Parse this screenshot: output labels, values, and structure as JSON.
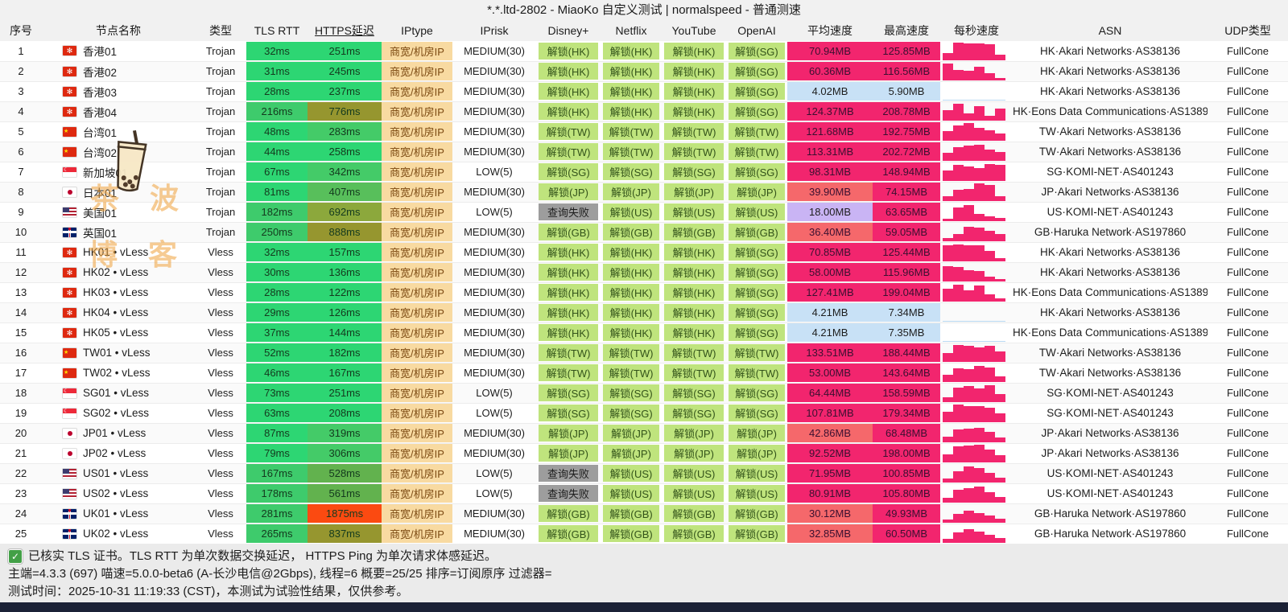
{
  "title": "*.*.ltd-2802 - MiaoKo 自定义测试 | normalspeed - 普通测速",
  "columns": [
    "序号",
    "节点名称",
    "类型",
    "TLS RTT",
    "HTTPS延迟",
    "IPtype",
    "IPrisk",
    "Disney+",
    "Netflix",
    "YouTube",
    "OpenAI",
    "平均速度",
    "最高速度",
    "每秒速度",
    "ASN",
    "UDP类型"
  ],
  "rows": [
    {
      "no": "1",
      "flag": "hk",
      "name": "香港01",
      "type": "Trojan",
      "tls": "32ms",
      "https": "251ms",
      "iptype": "商宽/机房IP",
      "iprisk": "MEDIUM(30)",
      "disney": "解锁(HK)",
      "netflix": "解锁(HK)",
      "youtube": "解锁(HK)",
      "openai": "解锁(SG)",
      "avg": "70.94MB",
      "max": "125.85MB",
      "spark": [
        38,
        95,
        90,
        92,
        88,
        30
      ],
      "spark_color": "pink",
      "asn": "HK·Akari Networks·AS38136",
      "udp": "FullCone"
    },
    {
      "no": "2",
      "flag": "hk",
      "name": "香港02",
      "type": "Trojan",
      "tls": "31ms",
      "https": "245ms",
      "iptype": "商宽/机房IP",
      "iprisk": "MEDIUM(30)",
      "disney": "解锁(HK)",
      "netflix": "解锁(HK)",
      "youtube": "解锁(HK)",
      "openai": "解锁(SG)",
      "avg": "60.36MB",
      "max": "116.56MB",
      "spark": [
        90,
        55,
        50,
        72,
        40,
        12
      ],
      "spark_color": "pink",
      "asn": "HK·Akari Networks·AS38136",
      "udp": "FullCone"
    },
    {
      "no": "3",
      "flag": "hk",
      "name": "香港03",
      "type": "Trojan",
      "tls": "28ms",
      "https": "237ms",
      "iptype": "商宽/机房IP",
      "iprisk": "MEDIUM(30)",
      "disney": "解锁(HK)",
      "netflix": "解锁(HK)",
      "youtube": "解锁(HK)",
      "openai": "解锁(SG)",
      "avg": "4.02MB",
      "max": "5.90MB",
      "spark": [
        4,
        3,
        3,
        3,
        3,
        3
      ],
      "spark_color": "blue",
      "asn": "HK·Akari Networks·AS38136",
      "udp": "FullCone"
    },
    {
      "no": "4",
      "flag": "hk",
      "name": "香港04",
      "type": "Trojan",
      "tls": "216ms",
      "https": "776ms",
      "iptype": "商宽/机房IP",
      "iprisk": "MEDIUM(30)",
      "disney": "解锁(HK)",
      "netflix": "解锁(HK)",
      "youtube": "解锁(HK)",
      "openai": "解锁(SG)",
      "avg": "124.37MB",
      "max": "208.78MB",
      "spark": [
        55,
        90,
        40,
        78,
        28,
        65
      ],
      "spark_color": "pink",
      "asn": "HK·Eons Data Communications·AS138997",
      "udp": "FullCone"
    },
    {
      "no": "5",
      "flag": "cn",
      "name": "台湾01",
      "type": "Trojan",
      "tls": "48ms",
      "https": "283ms",
      "iptype": "商宽/机房IP",
      "iprisk": "MEDIUM(30)",
      "disney": "解锁(TW)",
      "netflix": "解锁(TW)",
      "youtube": "解锁(TW)",
      "openai": "解锁(TW)",
      "avg": "121.68MB",
      "max": "192.75MB",
      "spark": [
        50,
        82,
        95,
        70,
        58,
        38
      ],
      "spark_color": "pink",
      "asn": "TW·Akari Networks·AS38136",
      "udp": "FullCone"
    },
    {
      "no": "6",
      "flag": "cn",
      "name": "台湾02",
      "type": "Trojan",
      "tls": "44ms",
      "https": "258ms",
      "iptype": "商宽/机房IP",
      "iprisk": "MEDIUM(30)",
      "disney": "解锁(TW)",
      "netflix": "解锁(TW)",
      "youtube": "解锁(TW)",
      "openai": "解锁(TW)",
      "avg": "113.31MB",
      "max": "202.72MB",
      "spark": [
        45,
        75,
        82,
        85,
        60,
        48
      ],
      "spark_color": "pink",
      "asn": "TW·Akari Networks·AS38136",
      "udp": "FullCone"
    },
    {
      "no": "7",
      "flag": "sg",
      "name": "新加坡01",
      "type": "Trojan",
      "tls": "67ms",
      "https": "342ms",
      "iptype": "商宽/机房IP",
      "iprisk": "LOW(5)",
      "disney": "解锁(SG)",
      "netflix": "解锁(SG)",
      "youtube": "解锁(SG)",
      "openai": "解锁(SG)",
      "avg": "98.31MB",
      "max": "148.94MB",
      "spark": [
        55,
        85,
        78,
        70,
        92,
        85
      ],
      "spark_color": "pink",
      "asn": "SG·KOMI-NET·AS401243",
      "udp": "FullCone"
    },
    {
      "no": "8",
      "flag": "jp",
      "name": "日本01",
      "type": "Trojan",
      "tls": "81ms",
      "https": "407ms",
      "iptype": "商宽/机房IP",
      "iprisk": "MEDIUM(30)",
      "disney": "解锁(JP)",
      "netflix": "解锁(JP)",
      "youtube": "解锁(JP)",
      "openai": "解锁(JP)",
      "avg": "39.90MB",
      "max": "74.15MB",
      "spark": [
        25,
        60,
        65,
        95,
        88,
        28
      ],
      "spark_color": "pink",
      "asn": "JP·Akari Networks·AS38136",
      "udp": "FullCone"
    },
    {
      "no": "9",
      "flag": "us",
      "name": "美国01",
      "type": "Trojan",
      "tls": "182ms",
      "https": "692ms",
      "iptype": "商宽/机房IP",
      "iprisk": "LOW(5)",
      "disney": "查询失败",
      "netflix": "解锁(US)",
      "youtube": "解锁(US)",
      "openai": "解锁(US)",
      "avg": "18.00MB",
      "max": "63.65MB",
      "spark": [
        15,
        72,
        88,
        40,
        28,
        18
      ],
      "spark_color": "pink",
      "asn": "US·KOMI-NET·AS401243",
      "udp": "FullCone"
    },
    {
      "no": "10",
      "flag": "gb",
      "name": "英国01",
      "type": "Trojan",
      "tls": "250ms",
      "https": "888ms",
      "iptype": "商宽/机房IP",
      "iprisk": "MEDIUM(30)",
      "disney": "解锁(GB)",
      "netflix": "解锁(GB)",
      "youtube": "解锁(GB)",
      "openai": "解锁(GB)",
      "avg": "36.40MB",
      "max": "59.05MB",
      "spark": [
        18,
        38,
        80,
        75,
        55,
        40
      ],
      "spark_color": "pink",
      "asn": "GB·Haruka Network·AS197860",
      "udp": "FullCone"
    },
    {
      "no": "11",
      "flag": "hk",
      "name": "HK01 • vLess",
      "type": "Vless",
      "tls": "32ms",
      "https": "157ms",
      "iptype": "商宽/机房IP",
      "iprisk": "MEDIUM(30)",
      "disney": "解锁(HK)",
      "netflix": "解锁(HK)",
      "youtube": "解锁(HK)",
      "openai": "解锁(SG)",
      "avg": "70.85MB",
      "max": "125.44MB",
      "spark": [
        85,
        92,
        88,
        85,
        58,
        18
      ],
      "spark_color": "pink",
      "asn": "HK·Akari Networks·AS38136",
      "udp": "FullCone"
    },
    {
      "no": "12",
      "flag": "hk",
      "name": "HK02 • vLess",
      "type": "Vless",
      "tls": "30ms",
      "https": "136ms",
      "iptype": "商宽/机房IP",
      "iprisk": "MEDIUM(30)",
      "disney": "解锁(HK)",
      "netflix": "解锁(HK)",
      "youtube": "解锁(HK)",
      "openai": "解锁(SG)",
      "avg": "58.00MB",
      "max": "115.96MB",
      "spark": [
        82,
        80,
        62,
        55,
        28,
        12
      ],
      "spark_color": "pink",
      "asn": "HK·Akari Networks·AS38136",
      "udp": "FullCone"
    },
    {
      "no": "13",
      "flag": "hk",
      "name": "HK03 • vLess",
      "type": "Vless",
      "tls": "28ms",
      "https": "122ms",
      "iptype": "商宽/机房IP",
      "iprisk": "MEDIUM(30)",
      "disney": "解锁(HK)",
      "netflix": "解锁(HK)",
      "youtube": "解锁(HK)",
      "openai": "解锁(SG)",
      "avg": "127.41MB",
      "max": "199.04MB",
      "spark": [
        70,
        92,
        62,
        85,
        38,
        18
      ],
      "spark_color": "pink",
      "asn": "HK·Eons Data Communications·AS138997",
      "udp": "FullCone"
    },
    {
      "no": "14",
      "flag": "hk",
      "name": "HK04 • vLess",
      "type": "Vless",
      "tls": "29ms",
      "https": "126ms",
      "iptype": "商宽/机房IP",
      "iprisk": "MEDIUM(30)",
      "disney": "解锁(HK)",
      "netflix": "解锁(HK)",
      "youtube": "解锁(HK)",
      "openai": "解锁(SG)",
      "avg": "4.21MB",
      "max": "7.34MB",
      "spark": [
        4,
        3,
        3,
        3,
        3,
        3
      ],
      "spark_color": "blue",
      "asn": "HK·Akari Networks·AS38136",
      "udp": "FullCone"
    },
    {
      "no": "15",
      "flag": "hk",
      "name": "HK05 • vLess",
      "type": "Vless",
      "tls": "37ms",
      "https": "144ms",
      "iptype": "商宽/机房IP",
      "iprisk": "MEDIUM(30)",
      "disney": "解锁(HK)",
      "netflix": "解锁(HK)",
      "youtube": "解锁(HK)",
      "openai": "解锁(SG)",
      "avg": "4.21MB",
      "max": "7.35MB",
      "spark": [
        4,
        3,
        3,
        3,
        3,
        3
      ],
      "spark_color": "blue",
      "asn": "HK·Eons Data Communications·AS138997",
      "udp": "FullCone"
    },
    {
      "no": "16",
      "flag": "cn",
      "name": "TW01 • vLess",
      "type": "Vless",
      "tls": "52ms",
      "https": "182ms",
      "iptype": "商宽/机房IP",
      "iprisk": "MEDIUM(30)",
      "disney": "解锁(TW)",
      "netflix": "解锁(TW)",
      "youtube": "解锁(TW)",
      "openai": "解锁(TW)",
      "avg": "133.51MB",
      "max": "188.44MB",
      "spark": [
        48,
        90,
        85,
        78,
        88,
        58
      ],
      "spark_color": "pink",
      "asn": "TW·Akari Networks·AS38136",
      "udp": "FullCone"
    },
    {
      "no": "17",
      "flag": "cn",
      "name": "TW02 • vLess",
      "type": "Vless",
      "tls": "46ms",
      "https": "167ms",
      "iptype": "商宽/机房IP",
      "iprisk": "MEDIUM(30)",
      "disney": "解锁(TW)",
      "netflix": "解锁(TW)",
      "youtube": "解锁(TW)",
      "openai": "解锁(TW)",
      "avg": "53.00MB",
      "max": "143.64MB",
      "spark": [
        38,
        75,
        70,
        85,
        78,
        32
      ],
      "spark_color": "pink",
      "asn": "TW·Akari Networks·AS38136",
      "udp": "FullCone"
    },
    {
      "no": "18",
      "flag": "sg",
      "name": "SG01 • vLess",
      "type": "Vless",
      "tls": "73ms",
      "https": "251ms",
      "iptype": "商宽/机房IP",
      "iprisk": "LOW(5)",
      "disney": "解锁(SG)",
      "netflix": "解锁(SG)",
      "youtube": "解锁(SG)",
      "openai": "解锁(SG)",
      "avg": "64.44MB",
      "max": "158.59MB",
      "spark": [
        28,
        80,
        85,
        72,
        90,
        42
      ],
      "spark_color": "pink",
      "asn": "SG·KOMI-NET·AS401243",
      "udp": "FullCone"
    },
    {
      "no": "19",
      "flag": "sg",
      "name": "SG02 • vLess",
      "type": "Vless",
      "tls": "63ms",
      "https": "208ms",
      "iptype": "商宽/机房IP",
      "iprisk": "LOW(5)",
      "disney": "解锁(SG)",
      "netflix": "解锁(SG)",
      "youtube": "解锁(SG)",
      "openai": "解锁(SG)",
      "avg": "107.81MB",
      "max": "179.34MB",
      "spark": [
        55,
        95,
        88,
        85,
        78,
        48
      ],
      "spark_color": "pink",
      "asn": "SG·KOMI-NET·AS401243",
      "udp": "FullCone"
    },
    {
      "no": "20",
      "flag": "jp",
      "name": "JP01 • vLess",
      "type": "Vless",
      "tls": "87ms",
      "https": "319ms",
      "iptype": "商宽/机房IP",
      "iprisk": "MEDIUM(30)",
      "disney": "解锁(JP)",
      "netflix": "解锁(JP)",
      "youtube": "解锁(JP)",
      "openai": "解锁(JP)",
      "avg": "42.86MB",
      "max": "68.48MB",
      "spark": [
        32,
        70,
        75,
        80,
        58,
        28
      ],
      "spark_color": "pink",
      "asn": "JP·Akari Networks·AS38136",
      "udp": "FullCone"
    },
    {
      "no": "21",
      "flag": "jp",
      "name": "JP02 • vLess",
      "type": "Vless",
      "tls": "79ms",
      "https": "306ms",
      "iptype": "商宽/机房IP",
      "iprisk": "MEDIUM(30)",
      "disney": "解锁(JP)",
      "netflix": "解锁(JP)",
      "youtube": "解锁(JP)",
      "openai": "解锁(JP)",
      "avg": "92.52MB",
      "max": "198.00MB",
      "spark": [
        45,
        85,
        90,
        95,
        68,
        38
      ],
      "spark_color": "pink",
      "asn": "JP·Akari Networks·AS38136",
      "udp": "FullCone"
    },
    {
      "no": "22",
      "flag": "us",
      "name": "US01 • vLess",
      "type": "Vless",
      "tls": "167ms",
      "https": "528ms",
      "iptype": "商宽/机房IP",
      "iprisk": "LOW(5)",
      "disney": "查询失败",
      "netflix": "解锁(US)",
      "youtube": "解锁(US)",
      "openai": "解锁(US)",
      "avg": "71.95MB",
      "max": "100.85MB",
      "spark": [
        22,
        62,
        85,
        78,
        52,
        28
      ],
      "spark_color": "pink",
      "asn": "US·KOMI-NET·AS401243",
      "udp": "FullCone"
    },
    {
      "no": "23",
      "flag": "us",
      "name": "US02 • vLess",
      "type": "Vless",
      "tls": "178ms",
      "https": "561ms",
      "iptype": "商宽/机房IP",
      "iprisk": "LOW(5)",
      "disney": "查询失败",
      "netflix": "解锁(US)",
      "youtube": "解锁(US)",
      "openai": "解锁(US)",
      "avg": "80.91MB",
      "max": "105.80MB",
      "spark": [
        28,
        70,
        80,
        88,
        58,
        32
      ],
      "spark_color": "pink",
      "asn": "US·KOMI-NET·AS401243",
      "udp": "FullCone"
    },
    {
      "no": "24",
      "flag": "gb",
      "name": "UK01 • vLess",
      "type": "Vless",
      "tls": "281ms",
      "https": "1875ms",
      "iptype": "商宽/机房IP",
      "iprisk": "MEDIUM(30)",
      "disney": "解锁(GB)",
      "netflix": "解锁(GB)",
      "youtube": "解锁(GB)",
      "openai": "解锁(GB)",
      "avg": "30.12MB",
      "max": "49.93MB",
      "spark": [
        18,
        48,
        65,
        52,
        38,
        22
      ],
      "spark_color": "pink",
      "asn": "GB·Haruka Network·AS197860",
      "udp": "FullCone"
    },
    {
      "no": "25",
      "flag": "gb",
      "name": "UK02 • vLess",
      "type": "Vless",
      "tls": "265ms",
      "https": "837ms",
      "iptype": "商宽/机房IP",
      "iprisk": "MEDIUM(30)",
      "disney": "解锁(GB)",
      "netflix": "解锁(GB)",
      "youtube": "解锁(GB)",
      "openai": "解锁(GB)",
      "avg": "32.85MB",
      "max": "60.50MB",
      "spark": [
        22,
        55,
        72,
        60,
        42,
        28
      ],
      "spark_color": "pink",
      "asn": "GB·Haruka Network·AS197860",
      "udp": "FullCone"
    }
  ],
  "footer": {
    "line1": "已核实 TLS 证书。TLS RTT 为单次数据交换延迟， HTTPS Ping 为单次请求体感延迟。",
    "line2": "主端=4.3.3 (697) 喵速=5.0.0-beta6 (A-长沙电信@2Gbps), 线程=6 概要=25/25 排序=订阅原序 过滤器=",
    "line3": "测试时间：2025-10-31 11:19:33 (CST)，本测试为试验性结果，仅供参考。"
  },
  "watermark": {
    "text1": "茶 波",
    "text2": "博 客"
  },
  "colors": {
    "latency_green_bright": "#2dd673",
    "latency_green_mid": "#44cb68",
    "latency_green_dark3": "#58bf5b",
    "latency_green_dark": "#62b24e",
    "latency_dark_olive": "#8ca83c",
    "latency_olive": "#96962f",
    "latency_red": "#fb4a11",
    "latency_text": "#143a1e",
    "iptype_bg": "#f8daa1",
    "iptype_text": "#7c4a12",
    "unlock_bg": "#bfe47d",
    "unlock_text": "#33531a",
    "unlock_fail_bg": "#9d9d9d",
    "unlock_fail_text": "#1d1d1d",
    "speed_pink": "#f2256e",
    "speed_salmon": "#f5686b",
    "speed_purple": "#c9b4f4",
    "speed_blue": "#c8e1f6",
    "speed_text_dark": "#3a1030",
    "spark_blue": "#b9d9f2",
    "bottom_bar": "#1b2136",
    "watermark_orange": "#f0a23c",
    "check_green": "#43a047"
  }
}
